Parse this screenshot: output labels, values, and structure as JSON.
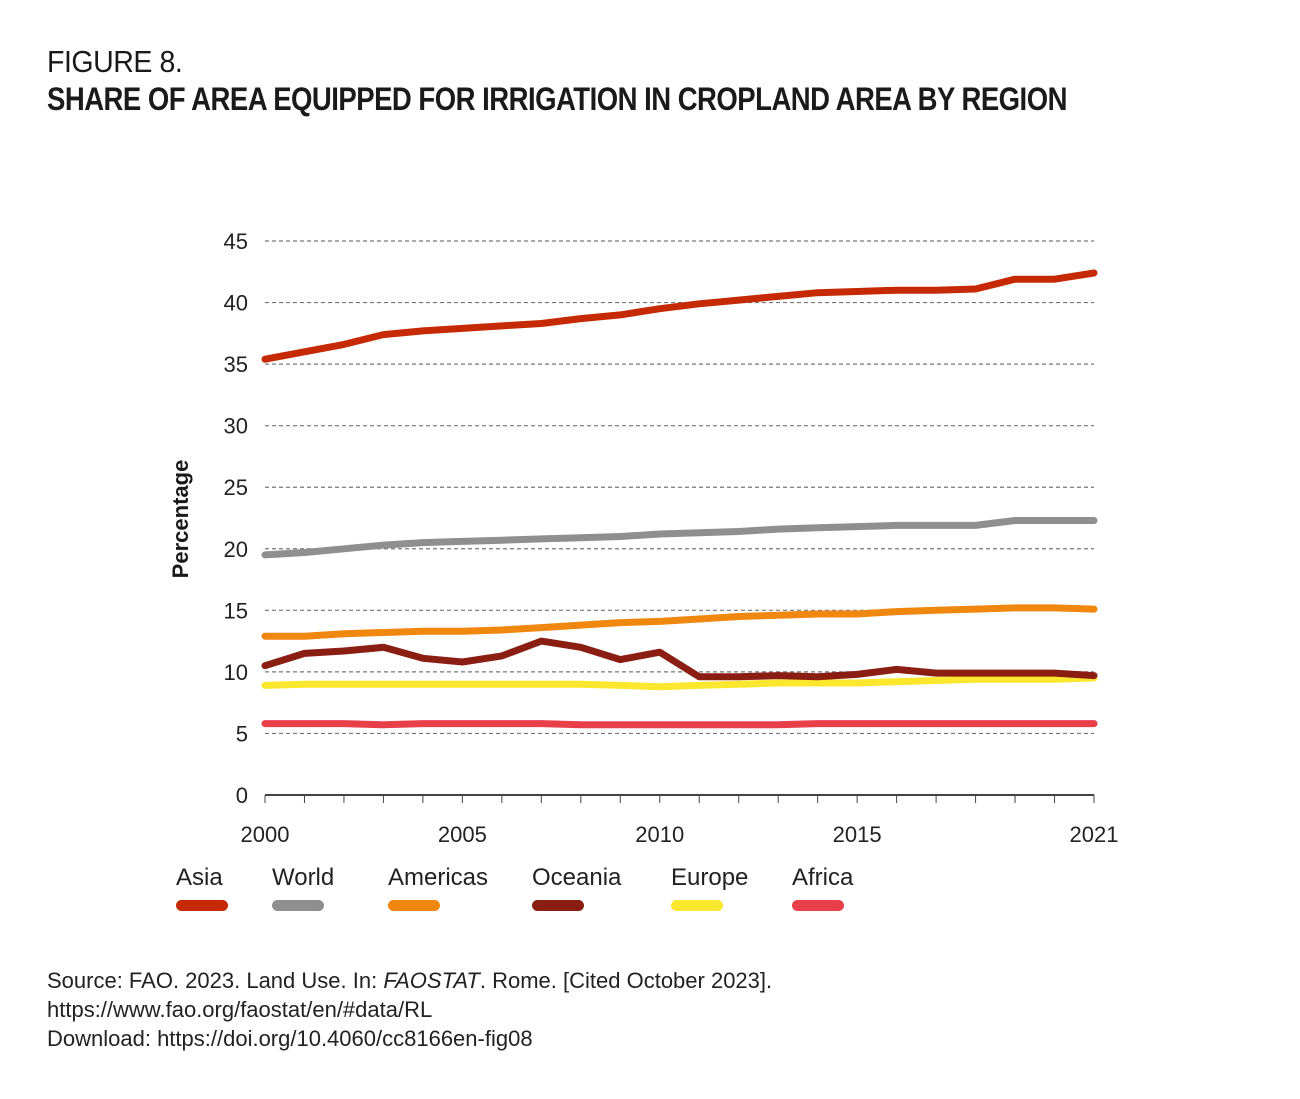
{
  "figure": {
    "label": "FIGURE 8.",
    "title": "SHARE OF AREA EQUIPPED FOR IRRIGATION IN CROPLAND AREA BY REGION"
  },
  "source": {
    "line1_prefix": "Source: FAO. 2023. Land Use. In: ",
    "line1_italic": "FAOSTAT",
    "line1_suffix": ". Rome. [Cited October 2023].",
    "line2": "https://www.fao.org/faostat/en/#data/RL",
    "line3": "Download: https://doi.org/10.4060/cc8166en-fig08"
  },
  "chart_data": {
    "type": "line",
    "title": "Share of area equipped for irrigation in cropland area by region",
    "xlabel": "",
    "ylabel": "Percentage",
    "ylim": [
      0,
      45
    ],
    "yticks": [
      0,
      5,
      10,
      15,
      20,
      25,
      30,
      35,
      40,
      45
    ],
    "xlim": [
      2000,
      2021
    ],
    "xtick_labels": [
      "2000",
      "2005",
      "2010",
      "2015",
      "2021"
    ],
    "grid": "horizontal dashed",
    "legend_position": "bottom-left",
    "x": [
      2000,
      2001,
      2002,
      2003,
      2004,
      2005,
      2006,
      2007,
      2008,
      2009,
      2010,
      2011,
      2012,
      2013,
      2014,
      2015,
      2016,
      2017,
      2018,
      2019,
      2020,
      2021
    ],
    "series": [
      {
        "name": "Asia",
        "color": "#c62a04",
        "values": [
          35.4,
          36.0,
          36.6,
          37.4,
          37.7,
          37.9,
          38.1,
          38.3,
          38.7,
          39.0,
          39.5,
          39.9,
          40.2,
          40.5,
          40.8,
          40.9,
          41.0,
          41.0,
          41.1,
          41.9,
          41.9,
          42.4
        ]
      },
      {
        "name": "World",
        "color": "#8f8f8f",
        "values": [
          19.5,
          19.7,
          20.0,
          20.3,
          20.5,
          20.6,
          20.7,
          20.8,
          20.9,
          21.0,
          21.2,
          21.3,
          21.4,
          21.6,
          21.7,
          21.8,
          21.9,
          21.9,
          21.9,
          22.3,
          22.3,
          22.3
        ]
      },
      {
        "name": "Americas",
        "color": "#f0870e",
        "values": [
          12.9,
          12.9,
          13.1,
          13.2,
          13.3,
          13.3,
          13.4,
          13.6,
          13.8,
          14.0,
          14.1,
          14.3,
          14.5,
          14.6,
          14.7,
          14.7,
          14.9,
          15.0,
          15.1,
          15.2,
          15.2,
          15.1
        ]
      },
      {
        "name": "Oceania",
        "color": "#8b1e12",
        "values": [
          10.5,
          11.5,
          11.7,
          12.0,
          11.1,
          10.8,
          11.3,
          12.5,
          12.0,
          11.0,
          11.6,
          9.6,
          9.6,
          9.7,
          9.6,
          9.8,
          10.2,
          9.9,
          9.9,
          9.9,
          9.9,
          9.7
        ]
      },
      {
        "name": "Europe",
        "color": "#fce72f",
        "values": [
          8.9,
          9.0,
          9.0,
          9.0,
          9.0,
          9.0,
          9.0,
          9.0,
          9.0,
          8.9,
          8.8,
          8.9,
          9.0,
          9.1,
          9.1,
          9.1,
          9.2,
          9.3,
          9.4,
          9.4,
          9.4,
          9.5
        ]
      },
      {
        "name": "Africa",
        "color": "#e8404b",
        "values": [
          5.8,
          5.8,
          5.8,
          5.7,
          5.8,
          5.8,
          5.8,
          5.8,
          5.7,
          5.7,
          5.7,
          5.7,
          5.7,
          5.7,
          5.8,
          5.8,
          5.8,
          5.8,
          5.8,
          5.8,
          5.8,
          5.8
        ]
      }
    ]
  }
}
